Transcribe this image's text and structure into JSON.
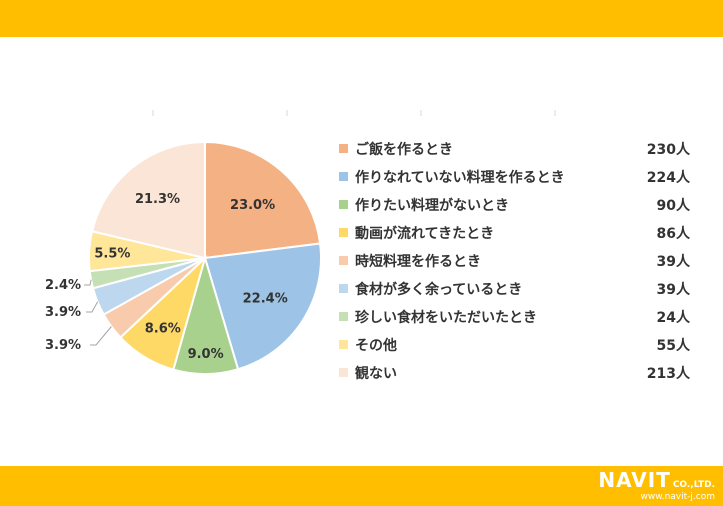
{
  "chart_data": {
    "type": "pie",
    "title": "",
    "legend_position": "right",
    "unit": "人",
    "slices": [
      {
        "label": "ご飯を作るとき",
        "value": 230,
        "percent": "23.0%",
        "color": "#F4B183"
      },
      {
        "label": "作りなれていない料理を作るとき",
        "value": 224,
        "percent": "22.4%",
        "color": "#9DC3E6"
      },
      {
        "label": "作りたい料理がないとき",
        "value": 90,
        "percent": "9.0%",
        "color": "#A9D18E"
      },
      {
        "label": "動画が流れてきたとき",
        "value": 86,
        "percent": "8.6%",
        "color": "#FFD966"
      },
      {
        "label": "時短料理を作るとき",
        "value": 39,
        "percent": "3.9%",
        "color": "#F8CBAD"
      },
      {
        "label": "食材が多く余っているとき",
        "value": 39,
        "percent": "3.9%",
        "color": "#BDD7EE"
      },
      {
        "label": "珍しい食材をいただいたとき",
        "value": 24,
        "percent": "2.4%",
        "color": "#C5E0B4"
      },
      {
        "label": "その他",
        "value": 55,
        "percent": "5.5%",
        "color": "#FFE699"
      },
      {
        "label": "観ない",
        "value": 213,
        "percent": "21.3%",
        "color": "#FBE5D6"
      }
    ]
  },
  "brand": {
    "name": "NAVIT",
    "suffix": "CO.,LTD.",
    "url": "www.navit-j.com",
    "band_color": "#FFBF00"
  }
}
